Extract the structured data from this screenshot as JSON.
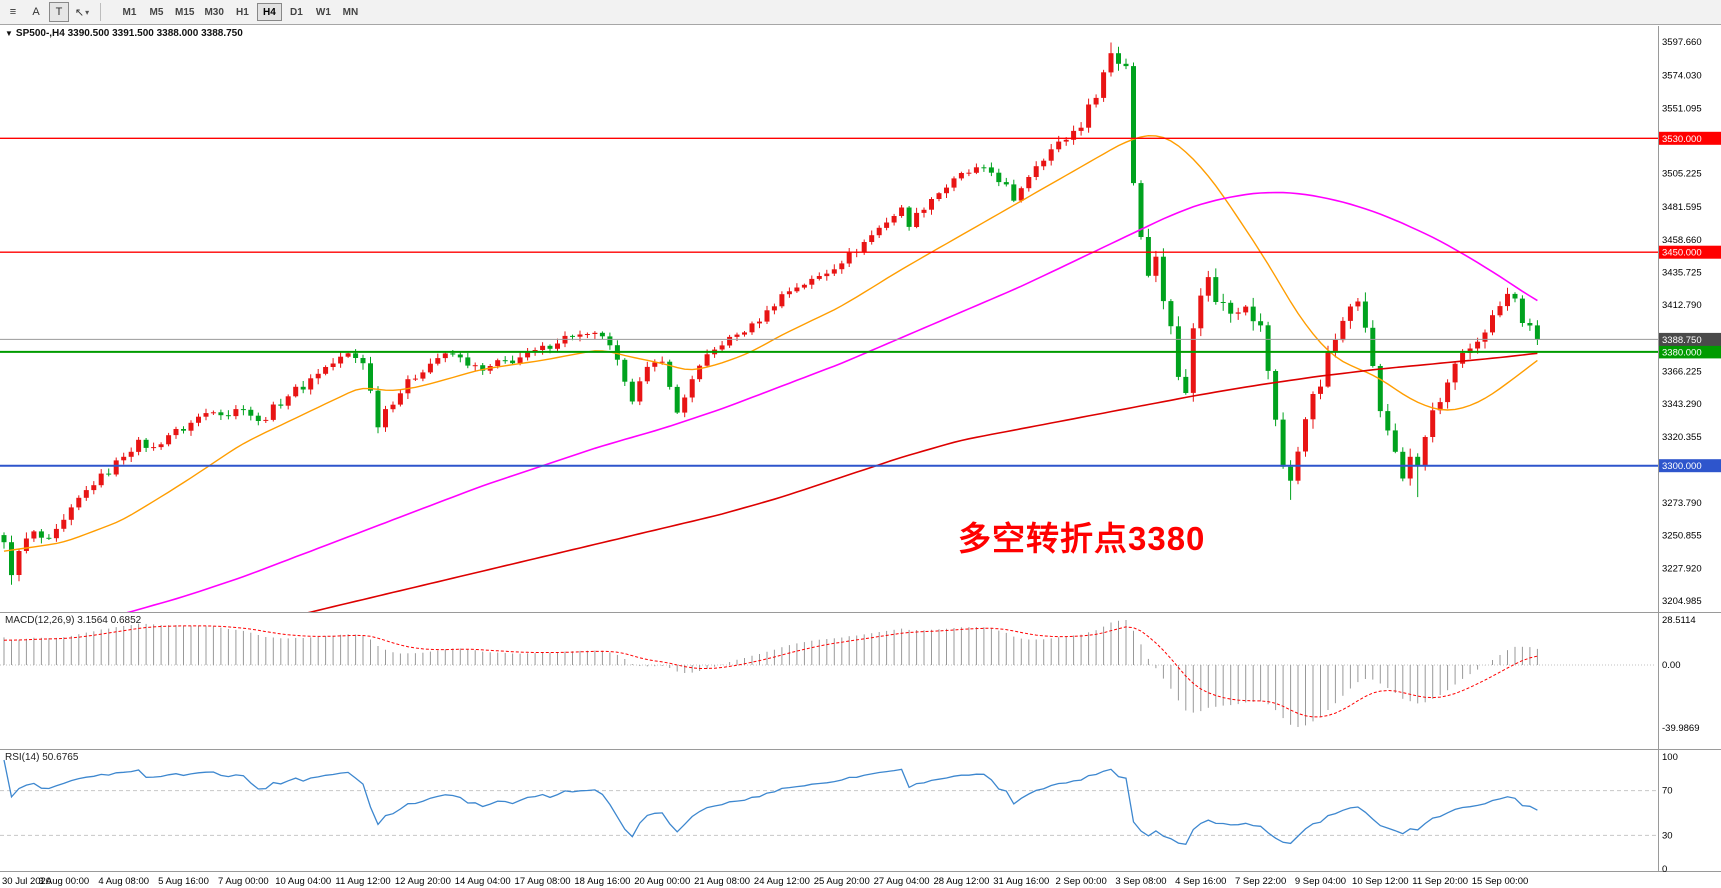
{
  "toolbar": {
    "tools": [
      {
        "name": "menu-lines-icon",
        "glyph": "≡"
      },
      {
        "name": "letter-a-tool-icon",
        "glyph": "A"
      },
      {
        "name": "text-tool-icon",
        "glyph": "T",
        "pressed": true
      },
      {
        "name": "cursor-tool-icon",
        "glyph": "↖",
        "caret": "▾"
      }
    ],
    "timeframes": [
      "M1",
      "M5",
      "M15",
      "M30",
      "H1",
      "H4",
      "D1",
      "W1",
      "MN"
    ],
    "active_timeframe": "H4"
  },
  "header": {
    "triangle": "▼",
    "symbol": "SP500-,H4",
    "symbol_line": "SP500-,H4  3390.500 3391.500 3388.000 3388.750",
    "ohlc": {
      "open": "3390.500",
      "high": "3391.500",
      "low": "3388.000",
      "close": "3388.750"
    }
  },
  "chart": {
    "annotation": {
      "text": "多空转折点3380",
      "color": "#ff0000"
    },
    "price_axis": [
      "3597.660",
      "3574.030",
      "3551.095",
      "3505.225",
      "3481.595",
      "3458.660",
      "3435.725",
      "3412.790",
      "3366.225",
      "3343.290",
      "3320.355",
      "3273.790",
      "3250.855",
      "3227.920",
      "3204.985"
    ],
    "hlines": [
      {
        "price": 3530.0,
        "label": "3530.000",
        "color": "#ff0000",
        "width": 1.4
      },
      {
        "price": 3450.0,
        "label": "3450.000",
        "color": "#ff0000",
        "width": 1.4
      },
      {
        "price": 3380.0,
        "label": "3380.000",
        "color": "#009b00",
        "width": 2
      },
      {
        "price": 3300.0,
        "label": "3300.000",
        "color": "#2e55cc",
        "width": 2
      }
    ],
    "current_price": {
      "price": 3388.75,
      "label": "3388.750",
      "line_color": "#9a9a9a",
      "badge_color": "#4a4a4a"
    },
    "time_labels": [
      "30 Jul 2020",
      "3 Aug 00:00",
      "4 Aug 08:00",
      "5 Aug 16:00",
      "7 Aug 00:00",
      "10 Aug 04:00",
      "11 Aug 12:00",
      "12 Aug 20:00",
      "14 Aug 04:00",
      "17 Aug 08:00",
      "18 Aug 16:00",
      "20 Aug 00:00",
      "21 Aug 08:00",
      "24 Aug 12:00",
      "25 Aug 20:00",
      "27 Aug 04:00",
      "28 Aug 12:00",
      "31 Aug 16:00",
      "2 Sep 00:00",
      "3 Sep 08:00",
      "4 Sep 16:00",
      "7 Sep 22:00",
      "9 Sep 04:00",
      "10 Sep 12:00",
      "11 Sep 20:00",
      "15 Sep 00:00"
    ]
  },
  "macd": {
    "label": "MACD(12,26,9) 3.1564 0.6852",
    "params": [
      12,
      26,
      9
    ],
    "values": {
      "main": "3.1564",
      "signal": "0.6852"
    },
    "axis": [
      "28.5114",
      "0.00",
      "-39.9869"
    ]
  },
  "rsi": {
    "label": "RSI(14) 50.6765",
    "period": 14,
    "value": "50.6765",
    "axis": [
      {
        "label": "100",
        "value": 100
      },
      {
        "label": "70",
        "value": 70
      },
      {
        "label": "30",
        "value": 30
      },
      {
        "label": "0",
        "value": 0
      }
    ],
    "levels": [
      70,
      30
    ]
  },
  "chart_data": {
    "type": "candlestick",
    "symbol": "SP500-",
    "timeframe": "H4",
    "bar_count": 206,
    "last_price": 3388.75,
    "price_range": [
      3204.985,
      3597.66
    ],
    "colors": {
      "up": "#e81414",
      "down": "#00a21e",
      "ma_fast": "#ff9d00",
      "ma_mid": "#ff00ff",
      "ma_slow": "#dd0000",
      "rsi": "#3d87cf",
      "macd_hist": "#999999",
      "macd_signal": "#ff0000"
    },
    "price_anchors": [
      [
        0,
        3244
      ],
      [
        1,
        3226
      ],
      [
        2,
        3238
      ],
      [
        3,
        3248
      ],
      [
        4,
        3252
      ],
      [
        6,
        3246
      ],
      [
        8,
        3260
      ],
      [
        10,
        3276
      ],
      [
        12,
        3288
      ],
      [
        14,
        3296
      ],
      [
        16,
        3308
      ],
      [
        18,
        3316
      ],
      [
        20,
        3312
      ],
      [
        22,
        3322
      ],
      [
        24,
        3326
      ],
      [
        26,
        3334
      ],
      [
        28,
        3340
      ],
      [
        30,
        3336
      ],
      [
        32,
        3342
      ],
      [
        34,
        3330
      ],
      [
        36,
        3340
      ],
      [
        38,
        3350
      ],
      [
        40,
        3356
      ],
      [
        42,
        3366
      ],
      [
        44,
        3372
      ],
      [
        46,
        3378
      ],
      [
        48,
        3374
      ],
      [
        49,
        3352
      ],
      [
        50,
        3330
      ],
      [
        51,
        3340
      ],
      [
        52,
        3346
      ],
      [
        54,
        3358
      ],
      [
        56,
        3368
      ],
      [
        58,
        3376
      ],
      [
        60,
        3378
      ],
      [
        62,
        3372
      ],
      [
        64,
        3366
      ],
      [
        66,
        3372
      ],
      [
        68,
        3374
      ],
      [
        70,
        3378
      ],
      [
        72,
        3382
      ],
      [
        74,
        3388
      ],
      [
        76,
        3392
      ],
      [
        78,
        3390
      ],
      [
        80,
        3392
      ],
      [
        82,
        3372
      ],
      [
        83,
        3356
      ],
      [
        84,
        3348
      ],
      [
        85,
        3362
      ],
      [
        86,
        3368
      ],
      [
        88,
        3372
      ],
      [
        89,
        3358
      ],
      [
        90,
        3336
      ],
      [
        91,
        3348
      ],
      [
        92,
        3362
      ],
      [
        94,
        3376
      ],
      [
        96,
        3386
      ],
      [
        98,
        3392
      ],
      [
        100,
        3398
      ],
      [
        102,
        3408
      ],
      [
        104,
        3420
      ],
      [
        106,
        3426
      ],
      [
        108,
        3430
      ],
      [
        110,
        3436
      ],
      [
        112,
        3444
      ],
      [
        114,
        3452
      ],
      [
        116,
        3462
      ],
      [
        118,
        3472
      ],
      [
        120,
        3480
      ],
      [
        121,
        3470
      ],
      [
        122,
        3476
      ],
      [
        124,
        3488
      ],
      [
        126,
        3496
      ],
      [
        128,
        3504
      ],
      [
        130,
        3508
      ],
      [
        132,
        3506
      ],
      [
        134,
        3496
      ],
      [
        135,
        3484
      ],
      [
        136,
        3496
      ],
      [
        138,
        3512
      ],
      [
        140,
        3522
      ],
      [
        142,
        3530
      ],
      [
        144,
        3540
      ],
      [
        146,
        3562
      ],
      [
        148,
        3590
      ],
      [
        149,
        3584
      ],
      [
        150,
        3582
      ],
      [
        151,
        3500
      ],
      [
        152,
        3462
      ],
      [
        153,
        3438
      ],
      [
        154,
        3445
      ],
      [
        155,
        3418
      ],
      [
        156,
        3400
      ],
      [
        157,
        3360
      ],
      [
        158,
        3352
      ],
      [
        159,
        3402
      ],
      [
        160,
        3424
      ],
      [
        161,
        3430
      ],
      [
        162,
        3418
      ],
      [
        164,
        3408
      ],
      [
        166,
        3416
      ],
      [
        168,
        3396
      ],
      [
        169,
        3368
      ],
      [
        170,
        3330
      ],
      [
        171,
        3300
      ],
      [
        172,
        3292
      ],
      [
        173,
        3310
      ],
      [
        174,
        3330
      ],
      [
        175,
        3352
      ],
      [
        176,
        3360
      ],
      [
        177,
        3376
      ],
      [
        178,
        3390
      ],
      [
        179,
        3398
      ],
      [
        180,
        3412
      ],
      [
        181,
        3420
      ],
      [
        182,
        3402
      ],
      [
        183,
        3368
      ],
      [
        184,
        3340
      ],
      [
        185,
        3322
      ],
      [
        186,
        3310
      ],
      [
        187,
        3292
      ],
      [
        188,
        3308
      ],
      [
        189,
        3296
      ],
      [
        190,
        3320
      ],
      [
        191,
        3338
      ],
      [
        192,
        3344
      ],
      [
        193,
        3356
      ],
      [
        194,
        3368
      ],
      [
        195,
        3376
      ],
      [
        196,
        3382
      ],
      [
        197,
        3388
      ],
      [
        198,
        3396
      ],
      [
        199,
        3404
      ],
      [
        200,
        3412
      ],
      [
        201,
        3420
      ],
      [
        202,
        3416
      ],
      [
        203,
        3402
      ],
      [
        204,
        3396
      ],
      [
        205,
        3388.75
      ]
    ],
    "volatility_anchors": [
      [
        0,
        9
      ],
      [
        20,
        6
      ],
      [
        48,
        9
      ],
      [
        60,
        6
      ],
      [
        80,
        8
      ],
      [
        96,
        6
      ],
      [
        120,
        6
      ],
      [
        140,
        7
      ],
      [
        148,
        10
      ],
      [
        156,
        14
      ],
      [
        170,
        14
      ],
      [
        190,
        12
      ],
      [
        205,
        7
      ]
    ],
    "wick_overrides": [
      [
        1,
        "low",
        3216.4
      ],
      [
        148,
        "high",
        3597.3
      ],
      [
        172,
        "low",
        3276
      ],
      [
        189,
        "low",
        3278
      ]
    ],
    "ma_fast": {
      "period": 24,
      "anchors": [
        [
          0,
          3240
        ],
        [
          8,
          3246
        ],
        [
          16,
          3262
        ],
        [
          24,
          3288
        ],
        [
          32,
          3316
        ],
        [
          40,
          3336
        ],
        [
          48,
          3356
        ],
        [
          52,
          3352
        ],
        [
          56,
          3356
        ],
        [
          64,
          3368
        ],
        [
          72,
          3374
        ],
        [
          80,
          3382
        ],
        [
          84,
          3376
        ],
        [
          88,
          3372
        ],
        [
          92,
          3366
        ],
        [
          96,
          3372
        ],
        [
          100,
          3380
        ],
        [
          104,
          3392
        ],
        [
          112,
          3412
        ],
        [
          120,
          3438
        ],
        [
          128,
          3462
        ],
        [
          136,
          3486
        ],
        [
          142,
          3504
        ],
        [
          146,
          3516
        ],
        [
          150,
          3528
        ],
        [
          153,
          3533
        ],
        [
          155,
          3532
        ],
        [
          157,
          3526
        ],
        [
          159,
          3516
        ],
        [
          161,
          3504
        ],
        [
          163,
          3490
        ],
        [
          165,
          3474
        ],
        [
          167,
          3458
        ],
        [
          169,
          3442
        ],
        [
          171,
          3424
        ],
        [
          173,
          3406
        ],
        [
          175,
          3392
        ],
        [
          177,
          3380
        ],
        [
          179,
          3372
        ],
        [
          181,
          3368
        ],
        [
          183,
          3364
        ],
        [
          185,
          3358
        ],
        [
          187,
          3350
        ],
        [
          189,
          3344
        ],
        [
          191,
          3340
        ],
        [
          193,
          3338
        ],
        [
          195,
          3340
        ],
        [
          197,
          3344
        ],
        [
          199,
          3350
        ],
        [
          201,
          3358
        ],
        [
          203,
          3366
        ],
        [
          205,
          3374
        ]
      ]
    },
    "ma_mid": {
      "period": 72,
      "anchors": [
        [
          0,
          3178
        ],
        [
          8,
          3186
        ],
        [
          16,
          3196
        ],
        [
          24,
          3208
        ],
        [
          32,
          3222
        ],
        [
          40,
          3238
        ],
        [
          48,
          3254
        ],
        [
          56,
          3270
        ],
        [
          64,
          3286
        ],
        [
          72,
          3300
        ],
        [
          80,
          3314
        ],
        [
          88,
          3326
        ],
        [
          96,
          3340
        ],
        [
          104,
          3356
        ],
        [
          112,
          3372
        ],
        [
          120,
          3390
        ],
        [
          128,
          3408
        ],
        [
          136,
          3426
        ],
        [
          144,
          3446
        ],
        [
          148,
          3456
        ],
        [
          152,
          3466
        ],
        [
          156,
          3476
        ],
        [
          160,
          3484
        ],
        [
          164,
          3489
        ],
        [
          168,
          3492
        ],
        [
          172,
          3492
        ],
        [
          176,
          3489
        ],
        [
          180,
          3484
        ],
        [
          184,
          3477
        ],
        [
          188,
          3468
        ],
        [
          192,
          3458
        ],
        [
          196,
          3446
        ],
        [
          200,
          3433
        ],
        [
          202,
          3426
        ],
        [
          204,
          3419
        ],
        [
          205,
          3416
        ]
      ]
    },
    "ma_slow": {
      "period": 150,
      "anchors": [
        [
          30,
          3182
        ],
        [
          40,
          3196
        ],
        [
          48,
          3206
        ],
        [
          56,
          3216
        ],
        [
          64,
          3226
        ],
        [
          72,
          3236
        ],
        [
          80,
          3246
        ],
        [
          88,
          3256
        ],
        [
          96,
          3266
        ],
        [
          104,
          3278
        ],
        [
          112,
          3292
        ],
        [
          120,
          3306
        ],
        [
          128,
          3318
        ],
        [
          136,
          3326
        ],
        [
          144,
          3334
        ],
        [
          152,
          3342
        ],
        [
          160,
          3350
        ],
        [
          168,
          3357
        ],
        [
          176,
          3363
        ],
        [
          184,
          3368
        ],
        [
          192,
          3372
        ],
        [
          200,
          3376
        ],
        [
          205,
          3379
        ]
      ]
    }
  }
}
